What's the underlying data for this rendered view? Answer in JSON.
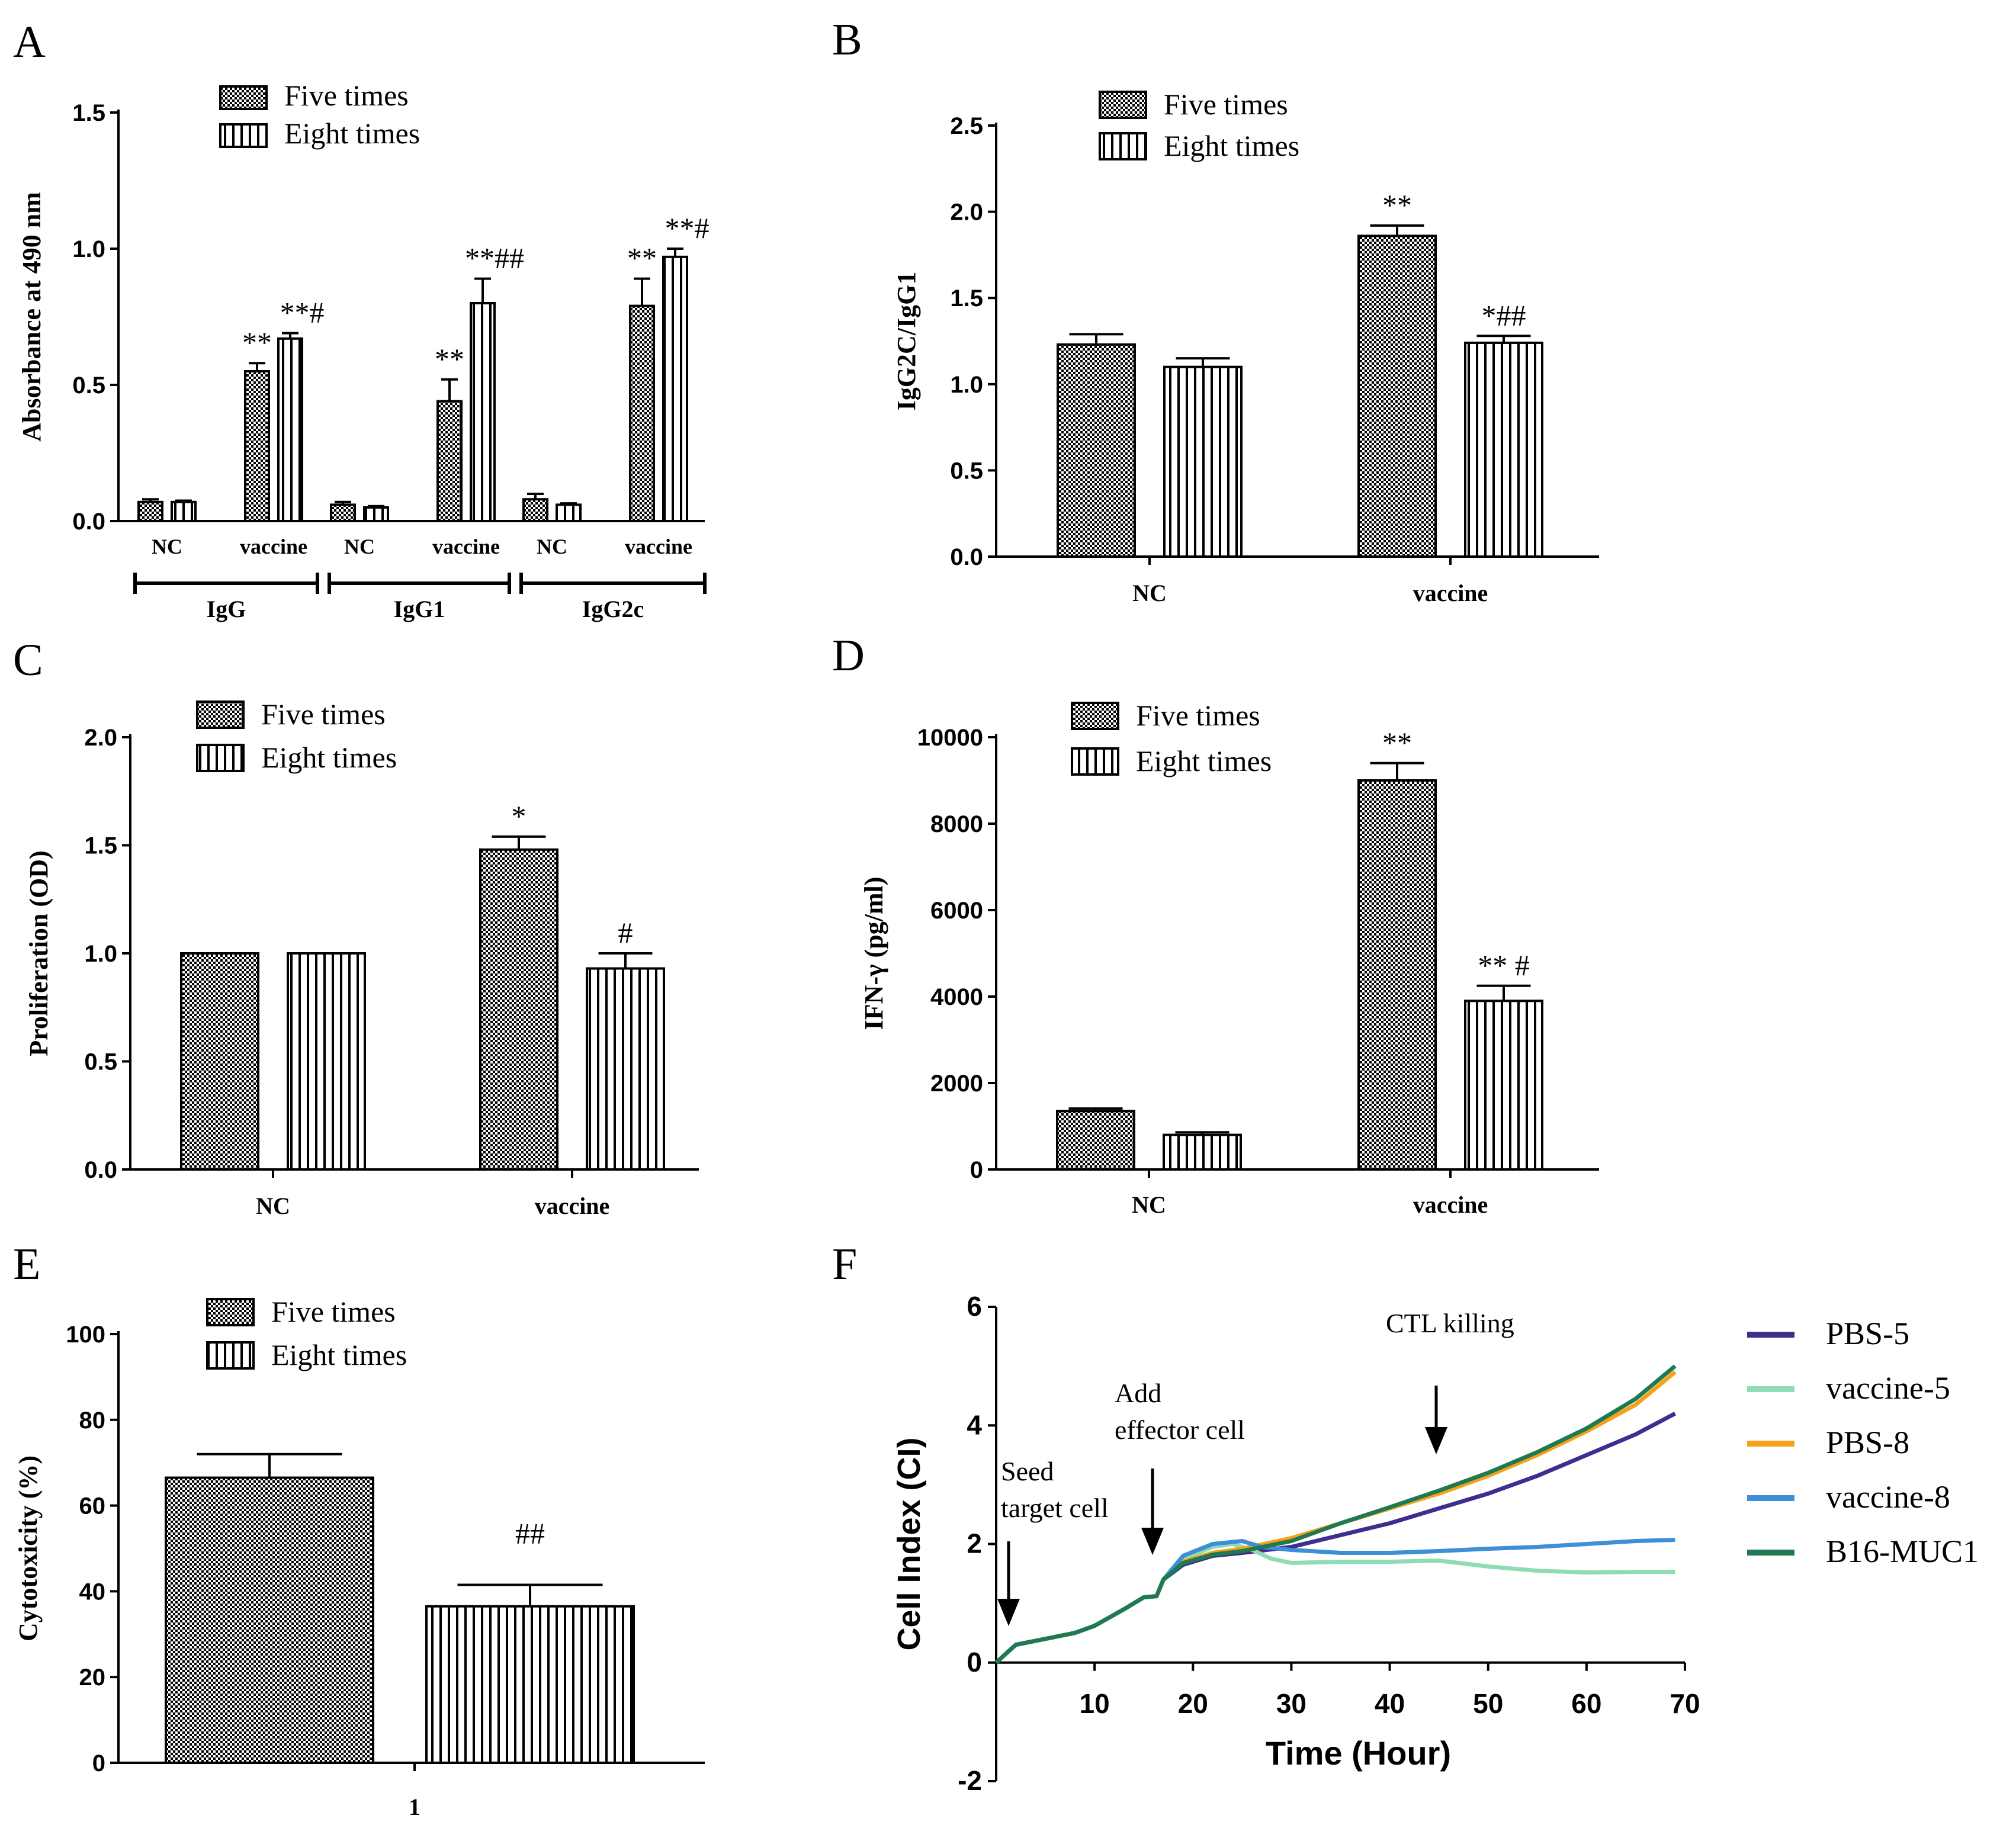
{
  "colors": {
    "ink": "#000000",
    "bar_fill": "#ffffff",
    "pbs5": "#3f2d8f",
    "vaccine5": "#8fdcb4",
    "pbs8": "#f7a11a",
    "vaccine8": "#3d8fd6",
    "b16muc1": "#1f7a52"
  },
  "legend": {
    "five": "Five times",
    "eight": "Eight times"
  },
  "panels": {
    "A": "A",
    "B": "B",
    "C": "C",
    "D": "D",
    "E": "E",
    "F": "F"
  },
  "chart_data": [
    {
      "id": "A",
      "type": "bar",
      "ylabel": "Absorbance at 490 nm",
      "ylim": [
        0,
        1.5
      ],
      "yticks": [
        "0.0",
        "0.5",
        "1.0",
        "1.5"
      ],
      "categories": [
        "NC",
        "vaccine",
        "NC",
        "vaccine",
        "NC",
        "vaccine"
      ],
      "groups": [
        "IgG",
        "IgG1",
        "IgG2c"
      ],
      "series": [
        {
          "name": "Five times",
          "values": [
            0.07,
            0.55,
            0.06,
            0.44,
            0.08,
            0.79
          ],
          "errors": [
            0.01,
            0.03,
            0.01,
            0.08,
            0.02,
            0.1
          ]
        },
        {
          "name": "Eight times",
          "values": [
            0.07,
            0.67,
            0.05,
            0.8,
            0.06,
            0.97
          ],
          "errors": [
            0.005,
            0.02,
            0.005,
            0.09,
            0.005,
            0.03
          ]
        }
      ],
      "annotations": [
        {
          "cat": 1,
          "series": 0,
          "text": "**"
        },
        {
          "cat": 1,
          "series": 1,
          "text": "**#"
        },
        {
          "cat": 3,
          "series": 0,
          "text": "**"
        },
        {
          "cat": 3,
          "series": 1,
          "text": "**##"
        },
        {
          "cat": 5,
          "series": 0,
          "text": "**"
        },
        {
          "cat": 5,
          "series": 1,
          "text": "**#"
        }
      ]
    },
    {
      "id": "B",
      "type": "bar",
      "ylabel": "IgG2C/IgG1",
      "ylim": [
        0,
        2.5
      ],
      "yticks": [
        "0.0",
        "0.5",
        "1.0",
        "1.5",
        "2.0",
        "2.5"
      ],
      "categories": [
        "NC",
        "vaccine"
      ],
      "series": [
        {
          "name": "Five times",
          "values": [
            1.23,
            1.86
          ],
          "errors": [
            0.06,
            0.06
          ]
        },
        {
          "name": "Eight times",
          "values": [
            1.1,
            1.24
          ],
          "errors": [
            0.05,
            0.04
          ]
        }
      ],
      "annotations": [
        {
          "cat": 1,
          "series": 0,
          "text": "**"
        },
        {
          "cat": 1,
          "series": 1,
          "text": "*##"
        }
      ]
    },
    {
      "id": "C",
      "type": "bar",
      "ylabel": "Proliferation (OD)",
      "ylim": [
        0,
        2.0
      ],
      "yticks": [
        "0.0",
        "0.5",
        "1.0",
        "1.5",
        "2.0"
      ],
      "categories": [
        "NC",
        "vaccine"
      ],
      "series": [
        {
          "name": "Five times",
          "values": [
            1.0,
            1.48
          ],
          "errors": [
            0,
            0.06
          ]
        },
        {
          "name": "Eight times",
          "values": [
            1.0,
            0.93
          ],
          "errors": [
            0,
            0.07
          ]
        }
      ],
      "annotations": [
        {
          "cat": 1,
          "series": 0,
          "text": "*"
        },
        {
          "cat": 1,
          "series": 1,
          "text": "#"
        }
      ]
    },
    {
      "id": "D",
      "type": "bar",
      "ylabel": "IFN-γ (pg/ml)",
      "ylim": [
        0,
        10000
      ],
      "yticks": [
        "0",
        "2000",
        "4000",
        "6000",
        "8000",
        "10000"
      ],
      "categories": [
        "NC",
        "vaccine"
      ],
      "series": [
        {
          "name": "Five times",
          "values": [
            1350,
            9000
          ],
          "errors": [
            60,
            400
          ]
        },
        {
          "name": "Eight times",
          "values": [
            800,
            3900
          ],
          "errors": [
            60,
            350
          ]
        }
      ],
      "annotations": [
        {
          "cat": 1,
          "series": 0,
          "text": "**"
        },
        {
          "cat": 1,
          "series": 1,
          "text": "** #"
        }
      ]
    },
    {
      "id": "E",
      "type": "bar",
      "ylabel": "Cytotoxicity (%)",
      "ylim": [
        0,
        100
      ],
      "yticks": [
        "0",
        "20",
        "40",
        "60",
        "80",
        "100"
      ],
      "categories": [
        "1"
      ],
      "series": [
        {
          "name": "Five times",
          "values": [
            66.5
          ],
          "errors": [
            5.5
          ]
        },
        {
          "name": "Eight times",
          "values": [
            36.5
          ],
          "errors": [
            5
          ]
        }
      ],
      "annotations": [
        {
          "cat": 0,
          "series": 1,
          "text": "##"
        }
      ]
    },
    {
      "id": "F",
      "type": "line",
      "xlabel": "Time (Hour)",
      "ylabel": "Cell Index (CI)",
      "xlim": [
        0,
        70
      ],
      "ylim": [
        -2,
        6
      ],
      "xticks": [
        "10",
        "20",
        "30",
        "40",
        "50",
        "60",
        "70"
      ],
      "yticks": [
        "-2",
        "0",
        "2",
        "4",
        "6"
      ],
      "annotations_text": {
        "seed_1": "Seed",
        "seed_2": "target cell",
        "add_1": "Add",
        "add_2": "effector cell",
        "ctl": "CTL killing"
      },
      "series": [
        {
          "name": "PBS-5",
          "points": [
            [
              0,
              0
            ],
            [
              1,
              0.15
            ],
            [
              2,
              0.3
            ],
            [
              5,
              0.4
            ],
            [
              8,
              0.5
            ],
            [
              10,
              0.62
            ],
            [
              13,
              0.9
            ],
            [
              15,
              1.1
            ],
            [
              16.3,
              1.12
            ],
            [
              17,
              1.4
            ],
            [
              19,
              1.65
            ],
            [
              22,
              1.8
            ],
            [
              25,
              1.85
            ],
            [
              30,
              1.95
            ],
            [
              35,
              2.15
            ],
            [
              40,
              2.35
            ],
            [
              45,
              2.6
            ],
            [
              50,
              2.85
            ],
            [
              55,
              3.15
            ],
            [
              60,
              3.5
            ],
            [
              65,
              3.85
            ],
            [
              69,
              4.2
            ]
          ]
        },
        {
          "name": "vaccine-5",
          "points": [
            [
              0,
              0
            ],
            [
              1,
              0.15
            ],
            [
              2,
              0.3
            ],
            [
              5,
              0.4
            ],
            [
              8,
              0.5
            ],
            [
              10,
              0.62
            ],
            [
              13,
              0.9
            ],
            [
              15,
              1.1
            ],
            [
              16.3,
              1.12
            ],
            [
              17,
              1.4
            ],
            [
              19,
              1.75
            ],
            [
              22,
              1.95
            ],
            [
              24,
              2.0
            ],
            [
              26,
              1.9
            ],
            [
              28,
              1.75
            ],
            [
              30,
              1.68
            ],
            [
              35,
              1.7
            ],
            [
              40,
              1.7
            ],
            [
              45,
              1.72
            ],
            [
              50,
              1.62
            ],
            [
              55,
              1.55
            ],
            [
              60,
              1.52
            ],
            [
              65,
              1.53
            ],
            [
              69,
              1.53
            ]
          ]
        },
        {
          "name": "PBS-8",
          "points": [
            [
              0,
              0
            ],
            [
              1,
              0.15
            ],
            [
              2,
              0.3
            ],
            [
              5,
              0.4
            ],
            [
              8,
              0.5
            ],
            [
              10,
              0.62
            ],
            [
              13,
              0.9
            ],
            [
              15,
              1.1
            ],
            [
              16.3,
              1.12
            ],
            [
              17,
              1.4
            ],
            [
              19,
              1.7
            ],
            [
              22,
              1.85
            ],
            [
              25,
              1.92
            ],
            [
              30,
              2.1
            ],
            [
              35,
              2.35
            ],
            [
              40,
              2.6
            ],
            [
              45,
              2.85
            ],
            [
              50,
              3.15
            ],
            [
              55,
              3.5
            ],
            [
              60,
              3.9
            ],
            [
              65,
              4.35
            ],
            [
              69,
              4.9
            ]
          ]
        },
        {
          "name": "vaccine-8",
          "points": [
            [
              0,
              0
            ],
            [
              1,
              0.15
            ],
            [
              2,
              0.3
            ],
            [
              5,
              0.4
            ],
            [
              8,
              0.5
            ],
            [
              10,
              0.62
            ],
            [
              13,
              0.9
            ],
            [
              15,
              1.1
            ],
            [
              16.3,
              1.12
            ],
            [
              17,
              1.4
            ],
            [
              19,
              1.8
            ],
            [
              22,
              2.0
            ],
            [
              25,
              2.05
            ],
            [
              27,
              1.95
            ],
            [
              30,
              1.9
            ],
            [
              35,
              1.85
            ],
            [
              40,
              1.85
            ],
            [
              45,
              1.88
            ],
            [
              50,
              1.92
            ],
            [
              55,
              1.95
            ],
            [
              60,
              2.0
            ],
            [
              65,
              2.05
            ],
            [
              69,
              2.07
            ]
          ]
        },
        {
          "name": "B16-MUC1",
          "points": [
            [
              0,
              0
            ],
            [
              1,
              0.15
            ],
            [
              2,
              0.3
            ],
            [
              5,
              0.4
            ],
            [
              8,
              0.5
            ],
            [
              10,
              0.62
            ],
            [
              13,
              0.9
            ],
            [
              15,
              1.1
            ],
            [
              16.3,
              1.12
            ],
            [
              17,
              1.4
            ],
            [
              19,
              1.68
            ],
            [
              22,
              1.82
            ],
            [
              25,
              1.88
            ],
            [
              30,
              2.05
            ],
            [
              35,
              2.35
            ],
            [
              40,
              2.62
            ],
            [
              45,
              2.9
            ],
            [
              50,
              3.2
            ],
            [
              55,
              3.55
            ],
            [
              60,
              3.95
            ],
            [
              65,
              4.45
            ],
            [
              69,
              5.0
            ]
          ]
        }
      ]
    }
  ]
}
